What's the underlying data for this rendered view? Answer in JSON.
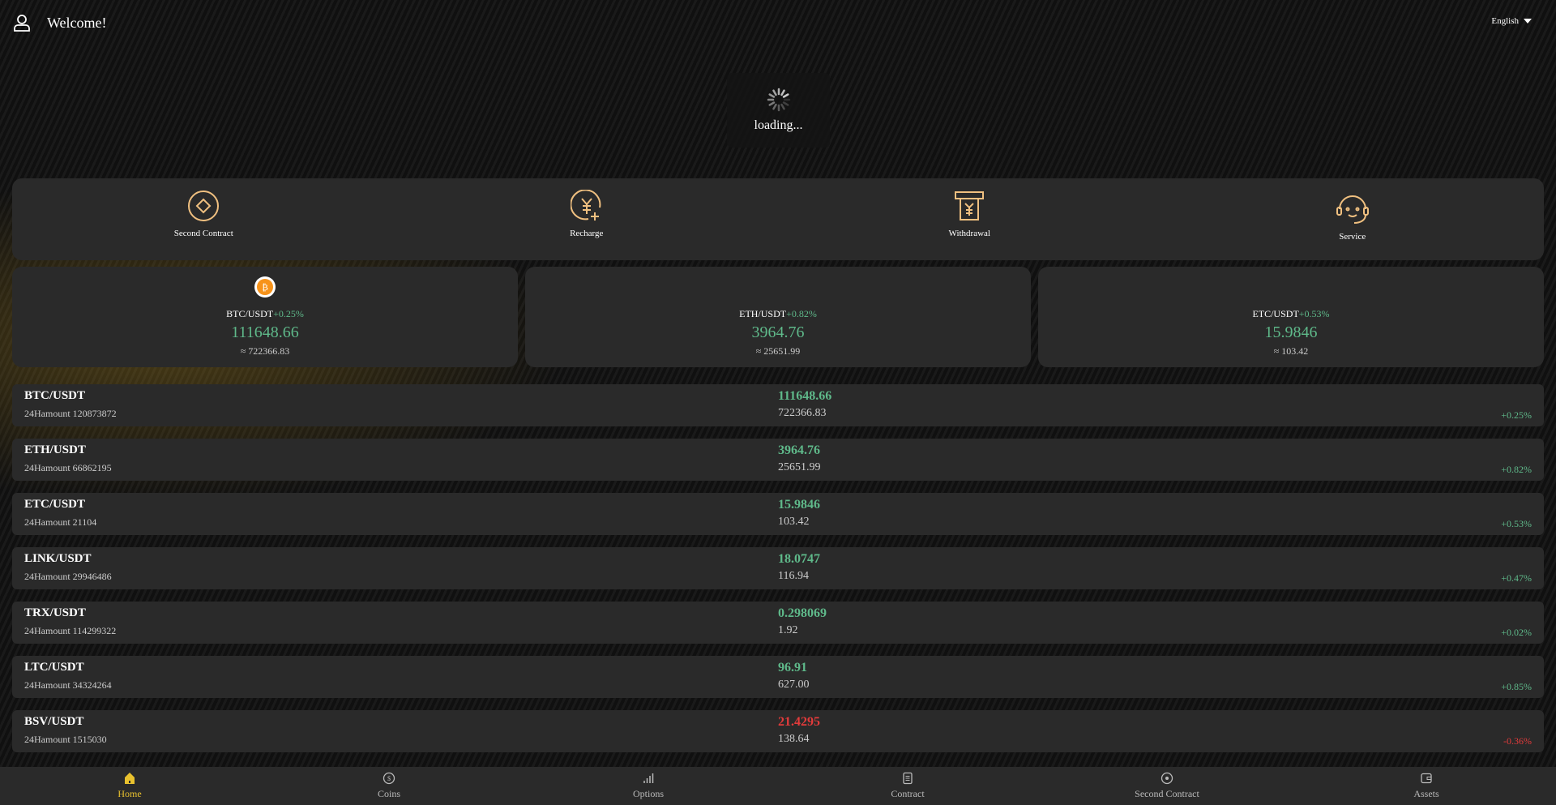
{
  "header": {
    "welcome": "Welcome!",
    "language": "English"
  },
  "quick": [
    {
      "label": "Second Contract",
      "icon": "diamond-circle-icon"
    },
    {
      "label": "Recharge",
      "icon": "yen-plus-icon"
    },
    {
      "label": "Withdrawal",
      "icon": "atm-yen-icon"
    },
    {
      "label": "Service",
      "icon": "headset-icon"
    }
  ],
  "cards": [
    {
      "pair": "BTC/USDT",
      "change": "+0.25%",
      "price": "111648.66",
      "cny": "≈ 722366.83"
    },
    {
      "pair": "ETH/USDT",
      "change": "+0.82%",
      "price": "3964.76",
      "cny": "≈ 25651.99"
    },
    {
      "pair": "ETC/USDT",
      "change": "+0.53%",
      "price": "15.9846",
      "cny": "≈ 103.42"
    }
  ],
  "rows": [
    {
      "name": "BTC/USDT",
      "amount": "24Hamount 120873872",
      "price": "111648.66",
      "cny": "722366.83",
      "change": "+0.25%",
      "up": true
    },
    {
      "name": "ETH/USDT",
      "amount": "24Hamount 66862195",
      "price": "3964.76",
      "cny": "25651.99",
      "change": "+0.82%",
      "up": true
    },
    {
      "name": "ETC/USDT",
      "amount": "24Hamount 21104",
      "price": "15.9846",
      "cny": "103.42",
      "change": "+0.53%",
      "up": true
    },
    {
      "name": "LINK/USDT",
      "amount": "24Hamount 29946486",
      "price": "18.0747",
      "cny": "116.94",
      "change": "+0.47%",
      "up": true
    },
    {
      "name": "TRX/USDT",
      "amount": "24Hamount 114299322",
      "price": "0.298069",
      "cny": "1.92",
      "change": "+0.02%",
      "up": true
    },
    {
      "name": "LTC/USDT",
      "amount": "24Hamount 34324264",
      "price": "96.91",
      "cny": "627.00",
      "change": "+0.85%",
      "up": true
    },
    {
      "name": "BSV/USDT",
      "amount": "24Hamount 1515030",
      "price": "21.4295",
      "cny": "138.64",
      "change": "-0.36%",
      "up": false
    }
  ],
  "loading": "loading...",
  "nav": [
    {
      "label": "Home",
      "icon": "home-icon"
    },
    {
      "label": "Coins",
      "icon": "coin-icon"
    },
    {
      "label": "Options",
      "icon": "bar-chart-icon"
    },
    {
      "label": "Contract",
      "icon": "document-icon"
    },
    {
      "label": "Second Contract",
      "icon": "target-icon"
    },
    {
      "label": "Assets",
      "icon": "wallet-icon"
    }
  ],
  "colors": {
    "up": "#5fb98a",
    "down": "#e33b3b",
    "accent": "#e8c12e",
    "icon": "#f0c080"
  }
}
